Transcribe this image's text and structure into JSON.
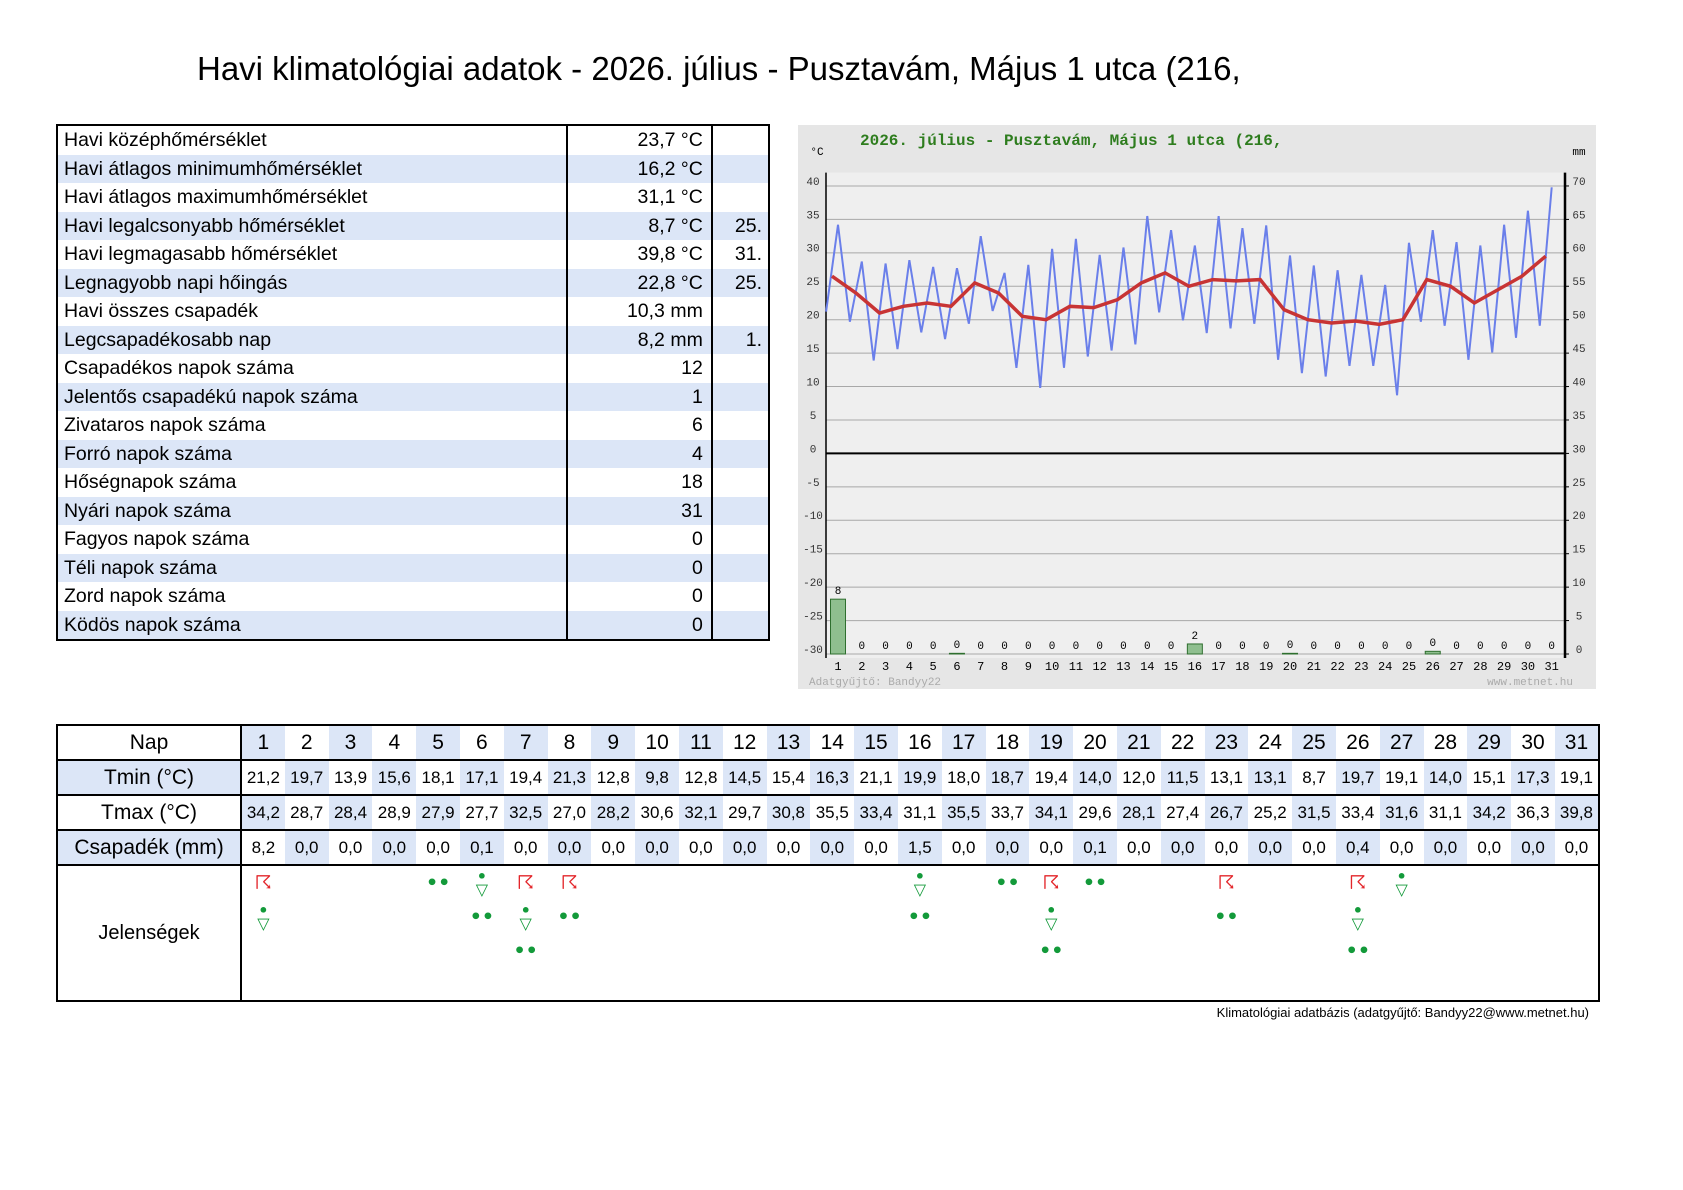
{
  "header": {
    "title": "Havi klimatológiai adatok - 2026. július - Pusztavám, Május 1 utca (216,"
  },
  "summary": {
    "rows": [
      {
        "label": "Havi középhőmérséklet",
        "value": "23,7 °C"
      },
      {
        "label": "Havi átlagos minimumhőmérséklet",
        "value": "16,2 °C"
      },
      {
        "label": "Havi átlagos maximumhőmérséklet",
        "value": "31,1 °C"
      },
      {
        "label": "Havi legalcsonyabb hőmérséklet",
        "value": "8,7 °C",
        "day": "25."
      },
      {
        "label": "Havi legmagasabb hőmérséklet",
        "value": "39,8 °C",
        "day": "31."
      },
      {
        "label": "Legnagyobb napi hőingás",
        "value": "22,8 °C",
        "day": "25."
      },
      {
        "label": "Havi összes csapadék",
        "value": "10,3 mm"
      },
      {
        "label": "Legcsapadékosabb nap",
        "value": "8,2 mm",
        "day": "1."
      },
      {
        "label": "Csapadékos napok száma",
        "value": "12"
      },
      {
        "label": "Jelentős csapadékú napok száma",
        "value": "1"
      },
      {
        "label": "Zivataros napok száma",
        "value": "6"
      },
      {
        "label": "Forró napok száma",
        "value": "4"
      },
      {
        "label": "Hőségnapok száma",
        "value": "18"
      },
      {
        "label": "Nyári napok száma",
        "value": "31"
      },
      {
        "label": "Fagyos napok száma",
        "value": "0"
      },
      {
        "label": "Téli napok száma",
        "value": "0"
      },
      {
        "label": "Zord napok száma",
        "value": "0"
      },
      {
        "label": "Ködös napok száma",
        "value": "0"
      }
    ]
  },
  "chart_data": {
    "type": "climate",
    "title": "2026. július - Pusztavám, Május 1 utca (216,",
    "y_label": "°C",
    "y2_label": "mm",
    "title_color": "#2e7d1e",
    "categories": [
      "1",
      "2",
      "3",
      "4",
      "5",
      "6",
      "7",
      "8",
      "9",
      "10",
      "11",
      "12",
      "13",
      "14",
      "15",
      "16",
      "17",
      "18",
      "19",
      "20",
      "21",
      "22",
      "23",
      "24",
      "25",
      "26",
      "27",
      "28",
      "29",
      "30",
      "31"
    ],
    "ylim": [
      -30,
      42
    ],
    "yticks": [
      -30,
      -25,
      -20,
      -15,
      -10,
      -5,
      0,
      5,
      10,
      15,
      20,
      25,
      30,
      35,
      40
    ],
    "y2lim": [
      0,
      72
    ],
    "y2ticks": [
      0,
      5,
      10,
      15,
      20,
      25,
      30,
      35,
      40,
      45,
      50,
      55,
      60,
      65,
      70
    ],
    "grid": true,
    "series": [
      {
        "type": "line",
        "color": "#6a7fea",
        "values": [
          21.2,
          19.7,
          13.9,
          15.6,
          18.1,
          17.1,
          19.4,
          21.3,
          12.8,
          9.8,
          12.8,
          14.5,
          15.4,
          16.3,
          21.1,
          19.9,
          18.0,
          18.7,
          19.4,
          14.0,
          12.0,
          11.5,
          13.1,
          13.1,
          8.7,
          19.7,
          19.1,
          14.0,
          15.1,
          17.3,
          19.1
        ]
      },
      {
        "type": "line",
        "color": "#6a7fea",
        "values": [
          34.2,
          28.7,
          28.4,
          28.9,
          27.9,
          27.7,
          32.5,
          27.0,
          28.2,
          30.6,
          32.1,
          29.7,
          30.8,
          35.5,
          33.4,
          31.1,
          35.5,
          33.7,
          34.1,
          29.6,
          28.1,
          27.4,
          26.7,
          25.2,
          31.5,
          33.4,
          31.6,
          31.1,
          34.2,
          36.3,
          39.8
        ]
      },
      {
        "type": "line",
        "color": "#c83434",
        "values": [
          26.5,
          24,
          21,
          22,
          22.5,
          22,
          25.5,
          24,
          20.5,
          20,
          22,
          21.8,
          23,
          25.5,
          27,
          25,
          26,
          25.8,
          26,
          21.5,
          20,
          19.5,
          19.8,
          19.3,
          20,
          26,
          25,
          22.5,
          24.5,
          26.5,
          29.5
        ]
      },
      {
        "type": "bar",
        "axis": "y2",
        "color": "#8fbf8f",
        "values": [
          8.2,
          0,
          0,
          0,
          0,
          0.1,
          0,
          0,
          0,
          0,
          0,
          0,
          0,
          0,
          0,
          1.5,
          0,
          0,
          0,
          0.1,
          0,
          0,
          0,
          0,
          0,
          0.4,
          0,
          0,
          0,
          0,
          0
        ],
        "value_labels": [
          "8",
          "0",
          "0",
          "0",
          "0",
          "0",
          "0",
          "0",
          "0",
          "0",
          "0",
          "0",
          "0",
          "0",
          "0",
          "2",
          "0",
          "0",
          "0",
          "0",
          "0",
          "0",
          "0",
          "0",
          "0",
          "0",
          "0",
          "0",
          "0",
          "0",
          "0"
        ]
      }
    ],
    "watermarks": [
      "Adatgyűjtő: Bandyy22",
      "www.metnet.hu"
    ]
  },
  "daily": {
    "header": "Nap",
    "days": [
      "1",
      "2",
      "3",
      "4",
      "5",
      "6",
      "7",
      "8",
      "9",
      "10",
      "11",
      "12",
      "13",
      "14",
      "15",
      "16",
      "17",
      "18",
      "19",
      "20",
      "21",
      "22",
      "23",
      "24",
      "25",
      "26",
      "27",
      "28",
      "29",
      "30",
      "31"
    ],
    "rows": [
      {
        "label": "Tmin (°C)",
        "cells": [
          "21,2",
          "19,7",
          "13,9",
          "15,6",
          "18,1",
          "17,1",
          "19,4",
          "21,3",
          "12,8",
          "9,8",
          "12,8",
          "14,5",
          "15,4",
          "16,3",
          "21,1",
          "19,9",
          "18,0",
          "18,7",
          "19,4",
          "14,0",
          "12,0",
          "11,5",
          "13,1",
          "13,1",
          "8,7",
          "19,7",
          "19,1",
          "14,0",
          "15,1",
          "17,3",
          "19,1"
        ]
      },
      {
        "label": "Tmax (°C)",
        "cells": [
          "34,2",
          "28,7",
          "28,4",
          "28,9",
          "27,9",
          "27,7",
          "32,5",
          "27,0",
          "28,2",
          "30,6",
          "32,1",
          "29,7",
          "30,8",
          "35,5",
          "33,4",
          "31,1",
          "35,5",
          "33,7",
          "34,1",
          "29,6",
          "28,1",
          "27,4",
          "26,7",
          "25,2",
          "31,5",
          "33,4",
          "31,6",
          "31,1",
          "34,2",
          "36,3",
          "39,8"
        ]
      },
      {
        "label": "Csapadék (mm)",
        "cells": [
          "8,2",
          "0,0",
          "0,0",
          "0,0",
          "0,0",
          "0,1",
          "0,0",
          "0,0",
          "0,0",
          "0,0",
          "0,0",
          "0,0",
          "0,0",
          "0,0",
          "0,0",
          "1,5",
          "0,0",
          "0,0",
          "0,0",
          "0,1",
          "0,0",
          "0,0",
          "0,0",
          "0,0",
          "0,0",
          "0,4",
          "0,0",
          "0,0",
          "0,0",
          "0,0",
          "0,0"
        ]
      }
    ],
    "phenomena": {
      "label": "Jelenségek",
      "days": [
        [
          {
            "symbol": "☈",
            "color": "#e3262b"
          },
          {
            "symbol": "•\n▽",
            "color": "#139a3a"
          }
        ],
        [],
        [],
        [],
        [
          {
            "symbol": "••",
            "color": "#139a3a"
          }
        ],
        [
          {
            "symbol": "•\n▽",
            "color": "#139a3a"
          },
          {
            "symbol": "••",
            "color": "#139a3a"
          }
        ],
        [
          {
            "symbol": "☈",
            "color": "#e3262b"
          },
          {
            "symbol": "•\n▽",
            "color": "#139a3a"
          },
          {
            "symbol": "••",
            "color": "#139a3a"
          }
        ],
        [
          {
            "symbol": "☈",
            "color": "#e3262b"
          },
          {
            "symbol": "••",
            "color": "#139a3a"
          }
        ],
        [],
        [],
        [],
        [],
        [],
        [],
        [],
        [
          {
            "symbol": "•\n▽",
            "color": "#139a3a"
          },
          {
            "symbol": "••",
            "color": "#139a3a"
          }
        ],
        [],
        [
          {
            "symbol": "••",
            "color": "#139a3a"
          }
        ],
        [
          {
            "symbol": "☈",
            "color": "#e3262b"
          },
          {
            "symbol": "•\n▽",
            "color": "#139a3a"
          },
          {
            "symbol": "••",
            "color": "#139a3a"
          }
        ],
        [
          {
            "symbol": "••",
            "color": "#139a3a"
          }
        ],
        [],
        [],
        [
          {
            "symbol": "☈",
            "color": "#e3262b"
          },
          {
            "symbol": "••",
            "color": "#139a3a"
          }
        ],
        [],
        [],
        [
          {
            "symbol": "☈",
            "color": "#e3262b"
          },
          {
            "symbol": "•\n▽",
            "color": "#139a3a"
          },
          {
            "symbol": "••",
            "color": "#139a3a"
          }
        ],
        [
          {
            "symbol": "•\n▽",
            "color": "#139a3a"
          }
        ],
        [],
        [],
        [],
        []
      ]
    }
  },
  "footer": {
    "text": "Klimatológiai adatbázis (adatgyűjtő: Bandyy22@www.metnet.hu)"
  }
}
